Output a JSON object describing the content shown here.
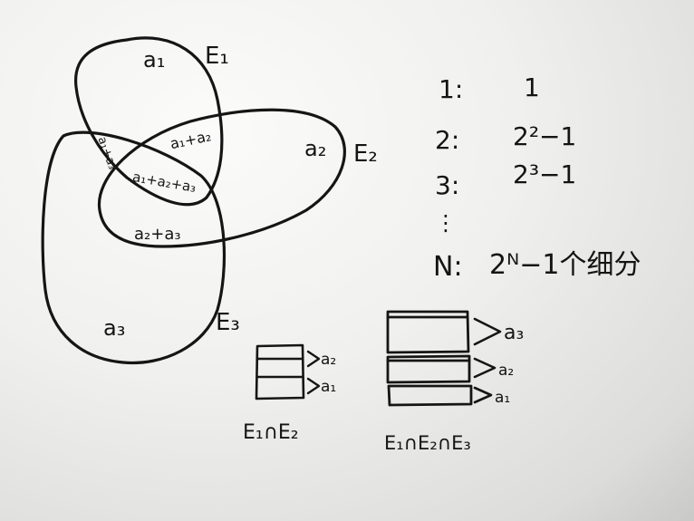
{
  "venn": {
    "sets": {
      "e1": "E₁",
      "e2": "E₂",
      "e3": "E₃"
    },
    "regions": {
      "a1": "a₁",
      "a2": "a₂",
      "a3": "a₃",
      "a1_a2": "a₁+a₂",
      "a1_a3": "a₁+a₃",
      "a2_a3": "a₂+a₃",
      "a1_a2_a3": "a₁+a₂+a₃"
    }
  },
  "counts": {
    "rows": [
      {
        "n": "1:",
        "value": "1"
      },
      {
        "n": "2:",
        "value": "2²−1"
      },
      {
        "n": "3:",
        "value": "2³−1"
      }
    ],
    "ellipsis": "⋮",
    "general": {
      "n": "N:",
      "value": "2ᴺ−1个细分"
    }
  },
  "stacks": {
    "two": {
      "labels": [
        "a₂",
        "a₁"
      ],
      "caption": "E₁∩E₂"
    },
    "three": {
      "labels": [
        "a₃",
        "a₂",
        "a₁"
      ],
      "caption": "E₁∩E₂∩E₃"
    }
  }
}
